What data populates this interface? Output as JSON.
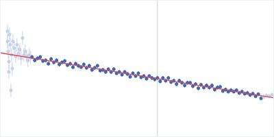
{
  "chart_data": {
    "type": "scatter",
    "tick_labels": false,
    "grid": false,
    "xlim": [
      0,
      400
    ],
    "ylim": [
      0,
      200
    ],
    "vertical_line": 230,
    "series": [
      {
        "type": "scatter",
        "color": "#c5d1e8",
        "marker": "circle",
        "error": 10,
        "x": [
          10,
          10,
          11,
          12,
          12,
          13,
          14,
          15,
          16,
          17,
          18,
          20,
          22,
          24,
          26,
          28,
          30,
          32,
          34,
          36,
          38,
          40,
          42,
          44
        ],
        "values": [
          155,
          140,
          125,
          110,
          95,
          150,
          135,
          68,
          120,
          100,
          140,
          130,
          118,
          135,
          122,
          128,
          115,
          145,
          120,
          125,
          118,
          112,
          120,
          116
        ]
      },
      {
        "type": "scatter",
        "color": "#3a67b7",
        "marker": "circle",
        "error": 3,
        "x": [
          46,
          50,
          54,
          58,
          62,
          66,
          70,
          74,
          78,
          82,
          86,
          90,
          94,
          98,
          102,
          106,
          110,
          114,
          118,
          122,
          126,
          130,
          134,
          138,
          142,
          146,
          150,
          154,
          158,
          162,
          166,
          170,
          174,
          178,
          182,
          186,
          190,
          194,
          198,
          202,
          206,
          210,
          214,
          218,
          222,
          226,
          230,
          234,
          238,
          242,
          246,
          250,
          254,
          258,
          262,
          266,
          270,
          274,
          278,
          282,
          286,
          290,
          294,
          298,
          302,
          306,
          310,
          314,
          318,
          322,
          326,
          330,
          334,
          338,
          342,
          346,
          350,
          354,
          358,
          362,
          366,
          370,
          374,
          378,
          382
        ],
        "values": [
          117,
          112,
          115,
          117,
          111,
          112,
          107,
          114,
          109,
          112,
          106,
          109,
          111,
          105,
          107,
          102,
          107,
          104,
          102,
          106,
          101,
          104,
          98,
          101,
          104,
          97,
          98,
          95,
          99,
          95,
          99,
          93,
          95,
          91,
          95,
          92,
          88,
          93,
          89,
          93,
          87,
          89,
          85,
          89,
          86,
          84,
          86,
          81,
          86,
          82,
          86,
          80,
          82,
          77,
          82,
          79,
          75,
          79,
          79,
          74,
          77,
          71,
          76,
          72,
          75,
          72,
          75,
          69,
          72,
          73,
          67,
          69,
          66,
          68,
          66,
          68,
          64,
          66,
          63,
          64,
          61,
          63,
          59,
          62,
          56
        ]
      },
      {
        "type": "scatter",
        "color": "#c5d1e8",
        "marker": "circle",
        "error": 4,
        "x": [
          386,
          390,
          394,
          398
        ],
        "values": [
          58,
          60,
          59,
          61
        ]
      },
      {
        "type": "line",
        "color": "#e0454a",
        "line_style": "solid",
        "x": [
          0,
          400
        ],
        "values": [
          123,
          57
        ]
      }
    ]
  }
}
